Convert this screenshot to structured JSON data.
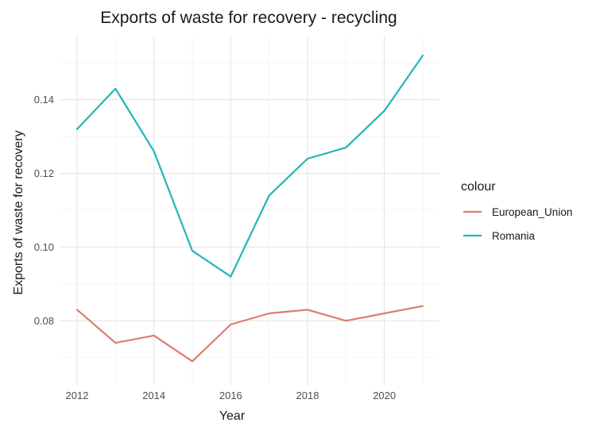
{
  "chart_data": {
    "type": "line",
    "title": "Exports of waste for recovery - recycling",
    "xlabel": "Year",
    "ylabel": "Exports of waste for recovery",
    "x": [
      2012,
      2013,
      2014,
      2015,
      2016,
      2017,
      2018,
      2019,
      2020,
      2021
    ],
    "xlim": [
      2012,
      2021
    ],
    "ylim": [
      0.0665,
      0.1535
    ],
    "x_ticks": [
      2012,
      2014,
      2016,
      2018,
      2020
    ],
    "x_tick_labels": [
      "2012",
      "2014",
      "2016",
      "2018",
      "2020"
    ],
    "y_ticks": [
      0.08,
      0.1,
      0.12,
      0.14
    ],
    "y_tick_labels": [
      "0.08",
      "0.10",
      "0.12",
      "0.14"
    ],
    "grid": true,
    "legend": {
      "title": "colour",
      "position": "right"
    },
    "series": [
      {
        "name": "European_Union",
        "color": "#e07b6f",
        "values": [
          0.083,
          0.074,
          0.076,
          0.069,
          0.079,
          0.082,
          0.083,
          0.08,
          0.082,
          0.084
        ]
      },
      {
        "name": "Romania",
        "color": "#23b5b5",
        "values": [
          0.132,
          0.143,
          0.126,
          0.099,
          0.092,
          0.114,
          0.124,
          0.127,
          0.137,
          0.152
        ]
      }
    ]
  }
}
